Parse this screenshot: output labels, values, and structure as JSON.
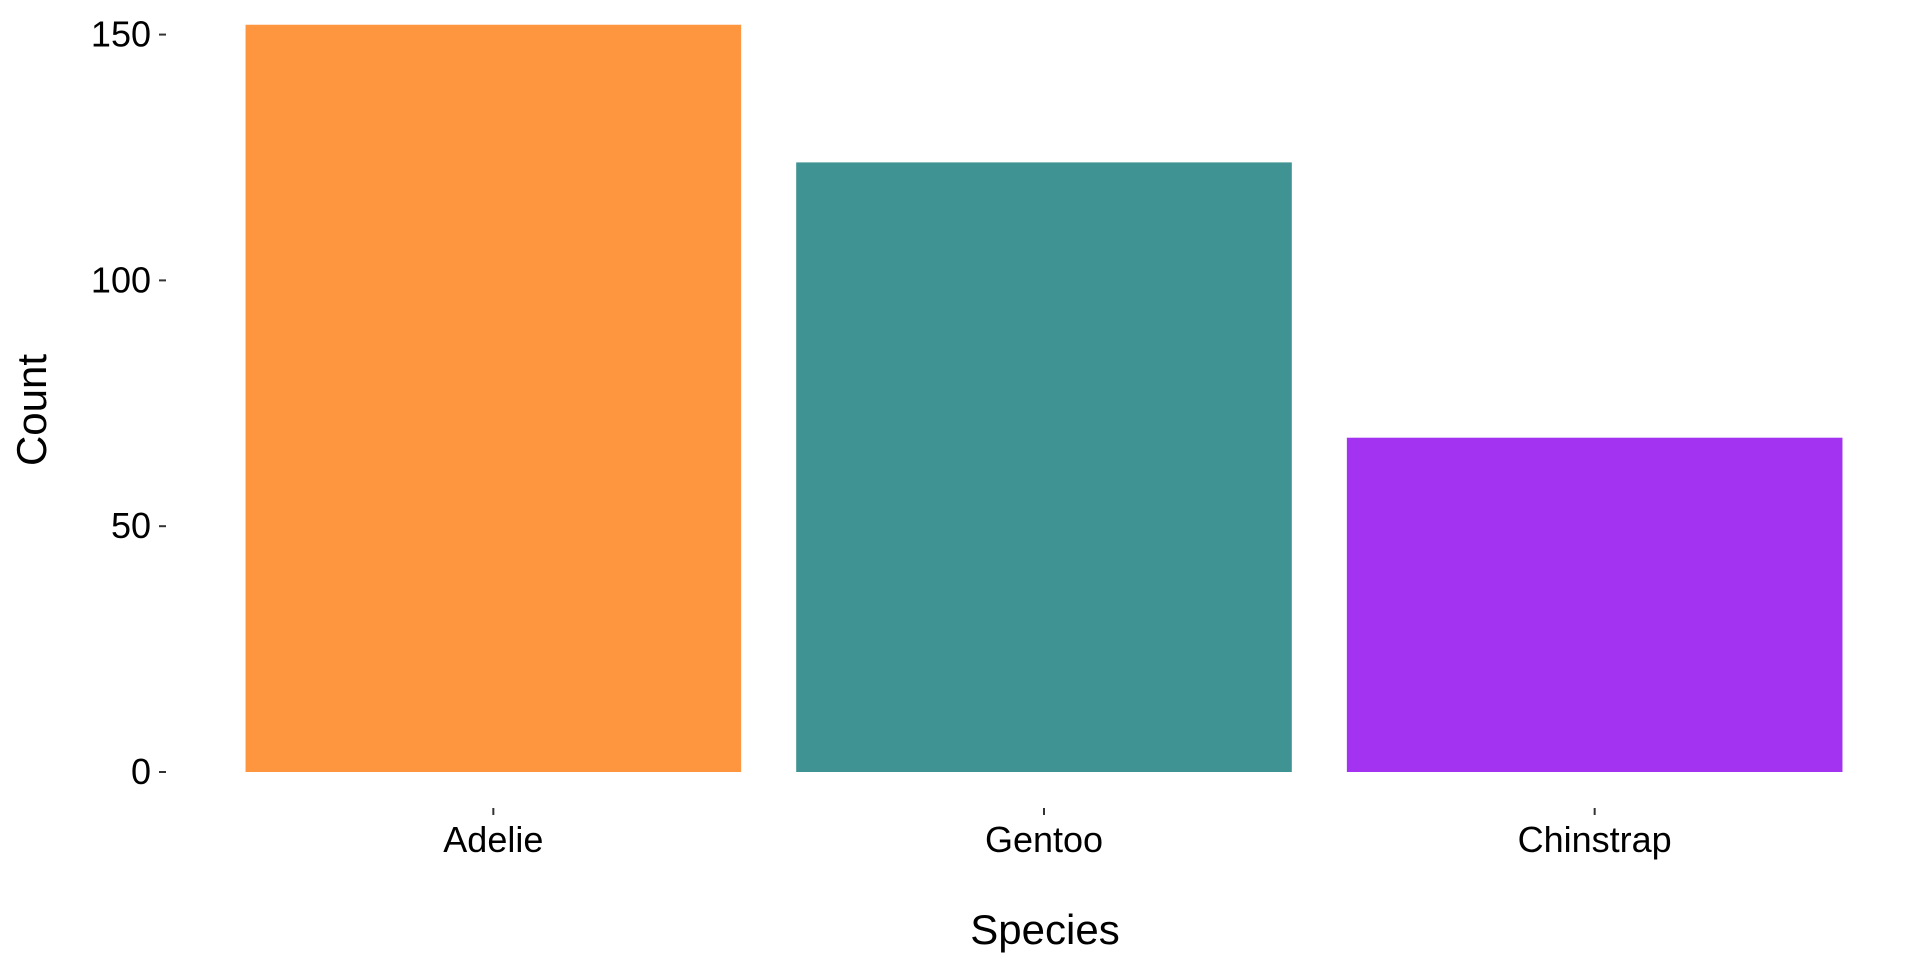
{
  "chart_data": {
    "type": "bar",
    "categories": [
      "Adelie",
      "Gentoo",
      "Chinstrap"
    ],
    "values": [
      152,
      124,
      68
    ],
    "colors": [
      "#FD963E",
      "#3F9393",
      "#A333F0"
    ],
    "xlabel": "Species",
    "ylabel": "Count",
    "ylim": [
      0,
      155
    ],
    "yticks": [
      0,
      50,
      100,
      150
    ],
    "grid": false,
    "legend": "none"
  }
}
